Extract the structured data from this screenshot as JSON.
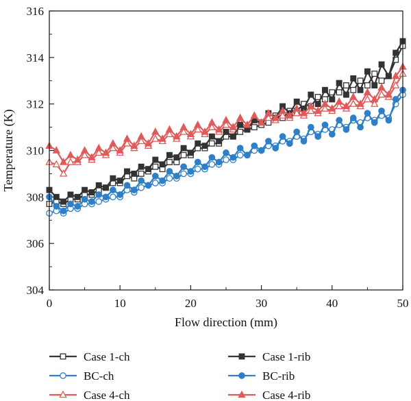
{
  "chart_data": {
    "type": "line",
    "xlabel": "Flow direction (mm)",
    "ylabel": "Temperature (K)",
    "xlim": [
      0,
      50
    ],
    "ylim": [
      304,
      316
    ],
    "xticks": [
      "0",
      "10",
      "20",
      "30",
      "40",
      "50"
    ],
    "yticks": [
      "304",
      "306",
      "308",
      "310",
      "312",
      "314",
      "316"
    ],
    "grid": false,
    "legend_position": "bottom",
    "series": [
      {
        "name": "Case 1-ch",
        "color": "#333333",
        "marker": "square",
        "filled": false,
        "x": [
          0,
          1,
          2,
          3,
          4,
          5,
          6,
          7,
          8,
          9,
          10,
          11,
          12,
          13,
          14,
          15,
          16,
          17,
          18,
          19,
          20,
          21,
          22,
          23,
          24,
          25,
          26,
          27,
          28,
          29,
          30,
          31,
          32,
          33,
          34,
          35,
          36,
          37,
          38,
          39,
          40,
          41,
          42,
          43,
          44,
          45,
          46,
          47,
          48,
          49,
          50
        ],
        "y": [
          307.7,
          307.8,
          307.7,
          307.9,
          307.9,
          308.1,
          308.1,
          308.3,
          308.4,
          308.6,
          308.6,
          308.9,
          308.8,
          309.0,
          309.1,
          309.3,
          309.2,
          309.5,
          309.5,
          309.8,
          309.8,
          310.1,
          310.1,
          310.3,
          310.3,
          310.6,
          310.6,
          310.8,
          310.9,
          311.0,
          311.1,
          311.2,
          311.5,
          311.4,
          311.7,
          311.7,
          312.0,
          311.9,
          312.3,
          312.2,
          312.5,
          312.5,
          312.8,
          312.6,
          313.0,
          312.8,
          313.3,
          313.0,
          313.2,
          313.9,
          314.5
        ]
      },
      {
        "name": "BC-ch",
        "color": "#2e7fc8",
        "marker": "circle",
        "filled": false,
        "x": [
          0,
          1,
          2,
          3,
          4,
          5,
          6,
          7,
          8,
          9,
          10,
          11,
          12,
          13,
          14,
          15,
          16,
          17,
          18,
          19,
          20,
          21,
          22,
          23,
          24,
          25,
          26,
          27,
          28,
          29,
          30,
          31,
          32,
          33,
          34,
          35,
          36,
          37,
          38,
          39,
          40,
          41,
          42,
          43,
          44,
          45,
          46,
          47,
          48,
          49,
          50
        ],
        "y": [
          307.3,
          307.4,
          307.3,
          307.5,
          307.5,
          307.7,
          307.7,
          307.8,
          307.9,
          308.0,
          308.0,
          308.3,
          308.2,
          308.4,
          308.5,
          308.6,
          308.6,
          308.8,
          308.8,
          309.0,
          309.0,
          309.2,
          309.2,
          309.4,
          309.4,
          309.6,
          309.6,
          309.8,
          309.8,
          310.0,
          310.0,
          310.2,
          310.2,
          310.4,
          310.4,
          310.6,
          310.5,
          310.8,
          310.7,
          310.9,
          310.9,
          311.1,
          311.0,
          311.3,
          311.2,
          311.4,
          311.3,
          311.5,
          311.4,
          312.0,
          312.4
        ]
      },
      {
        "name": "Case 4-ch",
        "color": "#e05a5a",
        "marker": "triangle",
        "filled": false,
        "x": [
          0,
          1,
          2,
          3,
          4,
          5,
          6,
          7,
          8,
          9,
          10,
          11,
          12,
          13,
          14,
          15,
          16,
          17,
          18,
          19,
          20,
          21,
          22,
          23,
          24,
          25,
          26,
          27,
          28,
          29,
          30,
          31,
          32,
          33,
          34,
          35,
          36,
          37,
          38,
          39,
          40,
          41,
          42,
          43,
          44,
          45,
          46,
          47,
          48,
          49,
          50
        ],
        "y": [
          309.5,
          309.4,
          309.0,
          309.5,
          309.5,
          309.8,
          309.6,
          309.9,
          309.8,
          310.1,
          309.9,
          310.3,
          310.1,
          310.4,
          310.2,
          310.5,
          310.4,
          310.7,
          310.5,
          310.8,
          310.6,
          310.9,
          310.7,
          311.0,
          310.8,
          311.1,
          310.9,
          311.2,
          311.0,
          311.3,
          311.2,
          311.4,
          311.3,
          311.5,
          311.4,
          311.6,
          311.5,
          311.7,
          311.6,
          311.8,
          311.7,
          311.9,
          311.8,
          312.0,
          311.9,
          312.2,
          312.0,
          312.4,
          312.3,
          312.8,
          313.3
        ]
      },
      {
        "name": "Case 1-rib",
        "color": "#333333",
        "marker": "square",
        "filled": true,
        "x": [
          0,
          1,
          2,
          3,
          4,
          5,
          6,
          7,
          8,
          9,
          10,
          11,
          12,
          13,
          14,
          15,
          16,
          17,
          18,
          19,
          20,
          21,
          22,
          23,
          24,
          25,
          26,
          27,
          28,
          29,
          30,
          31,
          32,
          33,
          34,
          35,
          36,
          37,
          38,
          39,
          40,
          41,
          42,
          43,
          44,
          45,
          46,
          47,
          48,
          49,
          50
        ],
        "y": [
          308.3,
          308.0,
          307.8,
          308.1,
          308.0,
          308.3,
          308.2,
          308.5,
          308.4,
          308.8,
          308.7,
          309.1,
          309.0,
          309.3,
          309.2,
          309.6,
          309.4,
          309.8,
          309.7,
          310.1,
          309.9,
          310.3,
          310.2,
          310.6,
          310.4,
          310.8,
          310.6,
          311.1,
          310.9,
          311.3,
          311.2,
          311.6,
          311.4,
          311.9,
          311.6,
          312.1,
          311.8,
          312.4,
          312.0,
          312.6,
          312.2,
          312.9,
          312.4,
          313.1,
          312.6,
          313.4,
          312.8,
          313.7,
          313.2,
          314.2,
          314.7
        ]
      },
      {
        "name": "BC-rib",
        "color": "#2e7fc8",
        "marker": "circle",
        "filled": true,
        "x": [
          0,
          1,
          2,
          3,
          4,
          5,
          6,
          7,
          8,
          9,
          10,
          11,
          12,
          13,
          14,
          15,
          16,
          17,
          18,
          19,
          20,
          21,
          22,
          23,
          24,
          25,
          26,
          27,
          28,
          29,
          30,
          31,
          32,
          33,
          34,
          35,
          36,
          37,
          38,
          39,
          40,
          41,
          42,
          43,
          44,
          45,
          46,
          47,
          48,
          49,
          50
        ],
        "y": [
          308.0,
          307.6,
          307.4,
          307.7,
          307.6,
          307.9,
          307.8,
          308.1,
          308.0,
          308.3,
          308.1,
          308.5,
          308.3,
          308.7,
          308.5,
          308.9,
          308.7,
          309.1,
          308.9,
          309.3,
          309.1,
          309.5,
          309.3,
          309.7,
          309.5,
          309.9,
          309.7,
          310.1,
          309.8,
          310.2,
          310.0,
          310.4,
          310.1,
          310.6,
          310.3,
          310.8,
          310.4,
          311.0,
          310.6,
          311.1,
          310.7,
          311.3,
          310.9,
          311.4,
          311.0,
          311.6,
          311.2,
          311.7,
          311.3,
          312.2,
          312.6
        ]
      },
      {
        "name": "Case 4-rib",
        "color": "#e05a5a",
        "marker": "triangle",
        "filled": true,
        "x": [
          0,
          1,
          2,
          3,
          4,
          5,
          6,
          7,
          8,
          9,
          10,
          11,
          12,
          13,
          14,
          15,
          16,
          17,
          18,
          19,
          20,
          21,
          22,
          23,
          24,
          25,
          26,
          27,
          28,
          29,
          30,
          31,
          32,
          33,
          34,
          35,
          36,
          37,
          38,
          39,
          40,
          41,
          42,
          43,
          44,
          45,
          46,
          47,
          48,
          49,
          50
        ],
        "y": [
          310.2,
          310.0,
          309.5,
          309.8,
          309.6,
          310.0,
          309.7,
          310.1,
          309.9,
          310.3,
          310.0,
          310.5,
          310.2,
          310.6,
          310.3,
          310.8,
          310.5,
          310.9,
          310.6,
          311.0,
          310.7,
          311.1,
          310.8,
          311.2,
          310.9,
          311.3,
          311.0,
          311.4,
          311.1,
          311.5,
          311.2,
          311.6,
          311.4,
          311.7,
          311.5,
          311.8,
          311.6,
          311.9,
          311.7,
          312.0,
          311.8,
          312.1,
          311.9,
          312.3,
          312.0,
          312.5,
          312.2,
          312.7,
          312.4,
          313.2,
          313.6
        ]
      }
    ]
  }
}
